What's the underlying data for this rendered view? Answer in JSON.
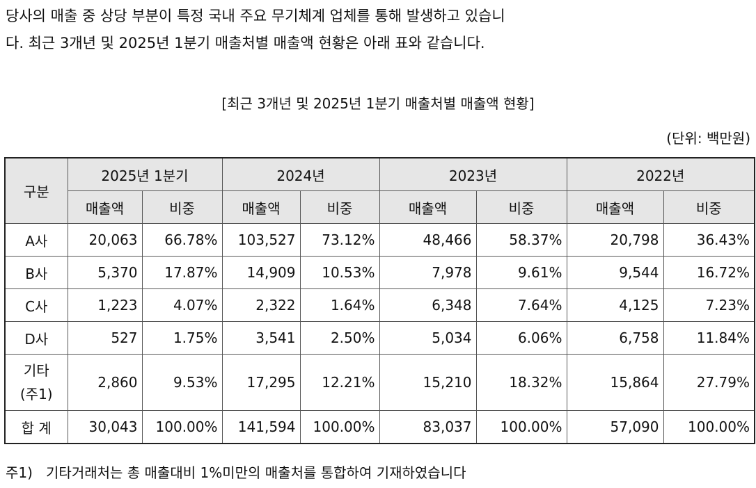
{
  "intro": {
    "line1": "당사의 매출 중 상당 부분이 특정 국내 주요 무기체계 업체를 통해 발생하고 있습니",
    "line2": "다. 최근 3개년 및 2025년 1분기 매출처별 매출액 현황은 아래 표와 같습니다."
  },
  "table_caption": "[최근 3개년 및 2025년 1분기 매출처별 매출액 현황]",
  "unit": "(단위: 백만원)",
  "header": {
    "category": "구분",
    "periods": [
      "2025년 1분기",
      "2024년",
      "2023년",
      "2022년"
    ],
    "sub": [
      "매출액",
      "비중"
    ]
  },
  "rows": [
    {
      "label": "A사",
      "cells": [
        "20,063",
        "66.78%",
        "103,527",
        "73.12%",
        "48,466",
        "58.37%",
        "20,798",
        "36.43%"
      ]
    },
    {
      "label": "B사",
      "cells": [
        "5,370",
        "17.87%",
        "14,909",
        "10.53%",
        "7,978",
        "9.61%",
        "9,544",
        "16.72%"
      ]
    },
    {
      "label": "C사",
      "cells": [
        "1,223",
        "4.07%",
        "2,322",
        "1.64%",
        "6,348",
        "7.64%",
        "4,125",
        "7.23%"
      ]
    },
    {
      "label": "D사",
      "cells": [
        "527",
        "1.75%",
        "3,541",
        "2.50%",
        "5,034",
        "6.06%",
        "6,758",
        "11.84%"
      ]
    },
    {
      "label_line1": "기타",
      "label_line2": "(주1)",
      "cells": [
        "2,860",
        "9.53%",
        "17,295",
        "12.21%",
        "15,210",
        "18.32%",
        "15,864",
        "27.79%"
      ]
    },
    {
      "label": "합 계",
      "cells": [
        "30,043",
        "100.00%",
        "141,594",
        "100.00%",
        "83,037",
        "100.00%",
        "57,090",
        "100.00%"
      ]
    }
  ],
  "footnote": {
    "mark": "주1)",
    "text": "기타거래처는 총 매출대비 1%미만의 매출처를 통합하여 기재하였습니다"
  }
}
